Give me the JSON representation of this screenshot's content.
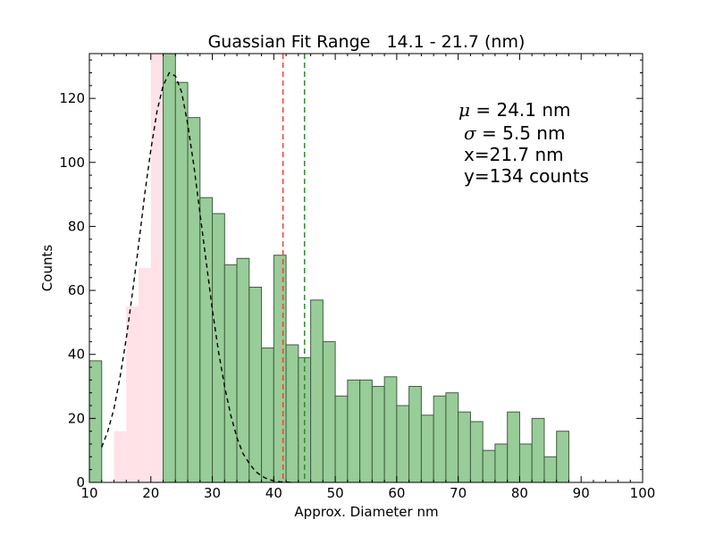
{
  "chart_data": {
    "type": "bar",
    "title": "Guassian Fit Range   14.1 - 21.7 (nm)",
    "xlabel": "Approx. Diameter nm",
    "ylabel": "Counts",
    "xlim": [
      10,
      100
    ],
    "ylim": [
      0,
      134
    ],
    "x_ticks": [
      10,
      20,
      30,
      40,
      50,
      60,
      70,
      80,
      90,
      100
    ],
    "y_ticks": [
      0,
      20,
      40,
      60,
      80,
      100,
      120
    ],
    "grid": false,
    "bin_width": 2.0,
    "bars": [
      {
        "x": 11.0,
        "value": 38
      },
      {
        "x": 15.0,
        "value": 16
      },
      {
        "x": 17.0,
        "value": 55
      },
      {
        "x": 19.0,
        "value": 67
      },
      {
        "x": 21.0,
        "value": 134
      },
      {
        "x": 23.0,
        "value": 134
      },
      {
        "x": 25.0,
        "value": 125
      },
      {
        "x": 27.0,
        "value": 114
      },
      {
        "x": 29.0,
        "value": 89
      },
      {
        "x": 31.0,
        "value": 84
      },
      {
        "x": 33.0,
        "value": 68
      },
      {
        "x": 35.0,
        "value": 70
      },
      {
        "x": 37.0,
        "value": 61
      },
      {
        "x": 39.0,
        "value": 42
      },
      {
        "x": 41.0,
        "value": 71
      },
      {
        "x": 43.0,
        "value": 43
      },
      {
        "x": 45.0,
        "value": 39
      },
      {
        "x": 47.0,
        "value": 57
      },
      {
        "x": 49.0,
        "value": 44
      },
      {
        "x": 51.0,
        "value": 27
      },
      {
        "x": 53.0,
        "value": 32
      },
      {
        "x": 55.0,
        "value": 32
      },
      {
        "x": 57.0,
        "value": 30
      },
      {
        "x": 59.0,
        "value": 33
      },
      {
        "x": 61.0,
        "value": 24
      },
      {
        "x": 63.0,
        "value": 30
      },
      {
        "x": 65.0,
        "value": 21
      },
      {
        "x": 67.0,
        "value": 27
      },
      {
        "x": 69.0,
        "value": 28
      },
      {
        "x": 71.0,
        "value": 22
      },
      {
        "x": 73.0,
        "value": 19
      },
      {
        "x": 75.0,
        "value": 10
      },
      {
        "x": 77.0,
        "value": 12
      },
      {
        "x": 79.0,
        "value": 22
      },
      {
        "x": 81.0,
        "value": 12
      },
      {
        "x": 83.0,
        "value": 20
      },
      {
        "x": 85.0,
        "value": 8
      },
      {
        "x": 87.0,
        "value": 16
      }
    ],
    "fit_range": [
      14.1,
      21.7
    ],
    "fit_curve": {
      "style": "dashed",
      "color": "#000000",
      "points": [
        [
          12.0,
          11
        ],
        [
          13.0,
          16
        ],
        [
          14.0,
          23
        ],
        [
          15.0,
          33
        ],
        [
          16.0,
          45
        ],
        [
          17.0,
          59
        ],
        [
          18.0,
          74
        ],
        [
          19.0,
          90
        ],
        [
          20.0,
          104
        ],
        [
          21.0,
          116
        ],
        [
          22.0,
          124
        ],
        [
          23.0,
          128
        ],
        [
          24.0,
          127
        ],
        [
          25.0,
          122
        ],
        [
          26.0,
          112
        ],
        [
          27.0,
          99
        ],
        [
          28.0,
          84
        ],
        [
          29.0,
          69
        ],
        [
          30.0,
          54
        ],
        [
          31.0,
          41
        ],
        [
          32.0,
          30
        ],
        [
          33.0,
          21
        ],
        [
          34.0,
          14
        ],
        [
          35.0,
          9
        ],
        [
          36.0,
          6
        ],
        [
          37.0,
          3.5
        ],
        [
          38.0,
          2
        ],
        [
          39.0,
          1
        ],
        [
          40.0,
          0.5
        ],
        [
          41.0,
          0.2
        ],
        [
          42.0,
          0.1
        ],
        [
          43.0,
          0
        ]
      ]
    },
    "vlines": [
      {
        "x": 41.5,
        "color": "#ff3b30",
        "style": "dashed"
      },
      {
        "x": 45.0,
        "color": "#2e8b2e",
        "style": "dashed"
      }
    ],
    "annotations": {
      "mu_symbol": "μ",
      "mu_text": "= 24.1 nm",
      "sigma_symbol": "σ",
      "sigma_text": "= 5.5 nm",
      "x_line": "x=21.7 nm",
      "y_line": "y=134 counts"
    },
    "colors": {
      "bar_fill": "#98cc98",
      "bar_edge": "#3f5f3f",
      "fit_range_fill": "#ffe1e8"
    }
  }
}
